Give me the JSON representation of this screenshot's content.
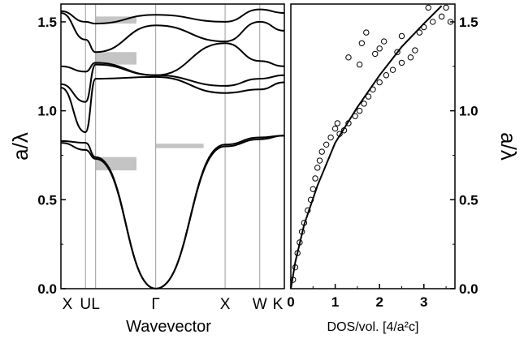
{
  "chart_data": [
    {
      "type": "line",
      "panel": "band-structure",
      "xlabel": "Wavevector",
      "ylabel": "a/λ",
      "ylim": [
        0,
        1.6
      ],
      "yticks": [
        "0.0",
        "0.5",
        "1.0",
        "1.5"
      ],
      "k_points": [
        {
          "label": "X",
          "pos": 0
        },
        {
          "label": "U",
          "pos": 0.354
        },
        {
          "label": "L",
          "pos": 0.5
        },
        {
          "label": "Γ",
          "pos": 1.366
        },
        {
          "label": "X",
          "pos": 2.366
        },
        {
          "label": "W",
          "pos": 2.866
        },
        {
          "label": "K",
          "pos": 3.22
        }
      ],
      "x_span": [
        0,
        3.22
      ],
      "band_gaps": [
        {
          "segment": "L-Γ",
          "ymin": 0.665,
          "ymax": 0.74
        },
        {
          "segment": "L-Γ",
          "ymin": 1.26,
          "ymax": 1.33
        },
        {
          "segment": "L-Γ",
          "ymin": 1.49,
          "ymax": 1.53
        },
        {
          "segment": "Γ-X",
          "ymin": 0.79,
          "ymax": 0.815
        }
      ],
      "series": [
        {
          "values": [
            [
              0,
              0.82
            ],
            [
              0.354,
              0.78
            ],
            [
              0.5,
              0.73
            ],
            [
              1.366,
              0
            ],
            [
              2.366,
              0.8
            ],
            [
              2.866,
              0.84
            ],
            [
              3.22,
              0.86
            ]
          ]
        },
        {
          "values": [
            [
              0,
              0.83
            ],
            [
              0.354,
              0.82
            ],
            [
              0.5,
              0.74
            ],
            [
              1.366,
              0
            ],
            [
              2.366,
              0.81
            ],
            [
              2.866,
              0.85
            ],
            [
              3.22,
              0.86
            ]
          ]
        },
        {
          "values": [
            [
              0,
              1.13
            ],
            [
              0.354,
              0.88
            ],
            [
              0.5,
              1.18
            ],
            [
              1.366,
              1.19
            ],
            [
              2.366,
              1.1
            ],
            [
              2.866,
              1.12
            ],
            [
              3.22,
              1.16
            ]
          ]
        },
        {
          "values": [
            [
              0,
              1.15
            ],
            [
              0.354,
              1.05
            ],
            [
              0.5,
              1.26
            ],
            [
              1.366,
              1.2
            ],
            [
              2.366,
              1.14
            ],
            [
              2.866,
              1.18
            ],
            [
              3.22,
              1.2
            ]
          ]
        },
        {
          "values": [
            [
              0,
              1.25
            ],
            [
              0.354,
              1.22
            ],
            [
              0.5,
              1.27
            ],
            [
              1.366,
              1.2
            ],
            [
              2.366,
              1.38
            ],
            [
              2.866,
              1.28
            ],
            [
              3.22,
              1.25
            ]
          ]
        },
        {
          "values": [
            [
              0,
              1.55
            ],
            [
              0.354,
              1.4
            ],
            [
              0.5,
              1.33
            ],
            [
              1.366,
              1.48
            ],
            [
              2.366,
              1.39
            ],
            [
              2.866,
              1.5
            ],
            [
              3.22,
              1.45
            ]
          ]
        },
        {
          "values": [
            [
              0,
              1.56
            ],
            [
              0.354,
              1.5
            ],
            [
              0.5,
              1.49
            ],
            [
              1.366,
              1.54
            ],
            [
              2.366,
              1.5
            ],
            [
              2.866,
              1.57
            ],
            [
              3.22,
              1.55
            ]
          ]
        }
      ]
    },
    {
      "type": "scatter",
      "panel": "density-of-states",
      "xlabel": "DOS/vol. [4/a²c]",
      "ylabel": "a/λ",
      "xlim": [
        0,
        3.7
      ],
      "ylim": [
        0,
        1.6
      ],
      "xticks": [
        "0",
        "1",
        "2",
        "3"
      ],
      "yticks": [
        "0.0",
        "0.5",
        "1.0",
        "1.5"
      ],
      "series": [
        {
          "style": "solid-curve",
          "values": [
            [
              0,
              0
            ],
            [
              0.1,
              0.15
            ],
            [
              0.3,
              0.36
            ],
            [
              0.6,
              0.58
            ],
            [
              1.0,
              0.82
            ],
            [
              1.5,
              1.02
            ],
            [
              2.0,
              1.2
            ],
            [
              2.5,
              1.36
            ],
            [
              3.0,
              1.49
            ],
            [
              3.4,
              1.59
            ]
          ]
        },
        {
          "style": "open-circles",
          "values": [
            [
              0.05,
              0.05
            ],
            [
              0.1,
              0.12
            ],
            [
              0.15,
              0.2
            ],
            [
              0.2,
              0.26
            ],
            [
              0.25,
              0.32
            ],
            [
              0.3,
              0.37
            ],
            [
              0.38,
              0.44
            ],
            [
              0.45,
              0.5
            ],
            [
              0.5,
              0.56
            ],
            [
              0.55,
              0.62
            ],
            [
              0.6,
              0.68
            ],
            [
              0.65,
              0.72
            ],
            [
              0.7,
              0.77
            ],
            [
              0.8,
              0.81
            ],
            [
              0.9,
              0.85
            ],
            [
              1.0,
              0.9
            ],
            [
              1.05,
              0.93
            ],
            [
              1.1,
              0.87
            ],
            [
              1.2,
              0.89
            ],
            [
              1.3,
              0.93
            ],
            [
              1.45,
              0.97
            ],
            [
              1.55,
              1.0
            ],
            [
              1.65,
              1.04
            ],
            [
              1.75,
              1.08
            ],
            [
              1.85,
              1.12
            ],
            [
              2.0,
              1.16
            ],
            [
              2.15,
              1.2
            ],
            [
              2.3,
              1.23
            ],
            [
              2.5,
              1.27
            ],
            [
              2.7,
              1.3
            ],
            [
              1.3,
              1.3
            ],
            [
              1.55,
              1.26
            ],
            [
              1.9,
              1.32
            ],
            [
              2.4,
              1.33
            ],
            [
              1.6,
              1.38
            ],
            [
              2.0,
              1.35
            ],
            [
              2.8,
              1.34
            ],
            [
              1.7,
              1.44
            ],
            [
              2.1,
              1.39
            ],
            [
              2.5,
              1.42
            ],
            [
              2.9,
              1.44
            ],
            [
              3.0,
              1.47
            ],
            [
              3.2,
              1.5
            ],
            [
              3.4,
              1.53
            ],
            [
              3.5,
              1.58
            ],
            [
              3.1,
              1.58
            ],
            [
              3.6,
              1.5
            ]
          ]
        }
      ]
    }
  ]
}
